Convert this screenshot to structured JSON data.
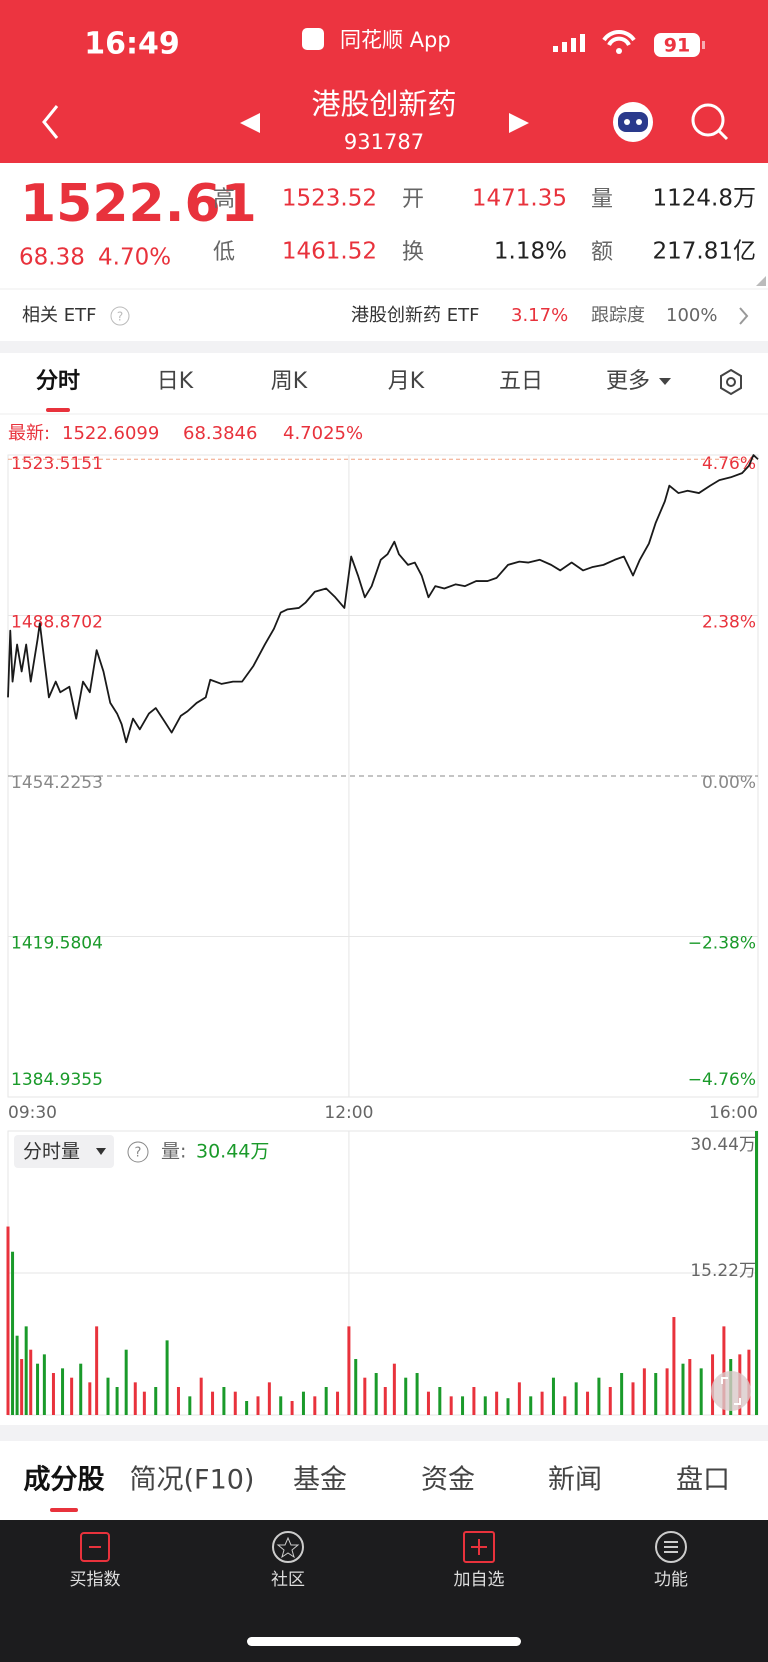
{
  "status_bar": {
    "time": "16:49",
    "app": "同花顺 App",
    "battery": "91"
  },
  "header": {
    "title": "港股创新药",
    "code": "931787"
  },
  "quote": {
    "price": "1522.61",
    "change": "68.38",
    "change_pct": "4.70%",
    "fields": [
      {
        "label": "高",
        "value": "1523.52"
      },
      {
        "label": "开",
        "value": "1471.35"
      },
      {
        "label": "量",
        "value": "1124.8万"
      },
      {
        "label": "低",
        "value": "1461.52"
      },
      {
        "label": "换",
        "value": "1.18%"
      },
      {
        "label": "额",
        "value": "217.81亿"
      }
    ]
  },
  "etf": {
    "label": "相关 ETF",
    "name": "港股创新药 ETF",
    "pct": "3.17%",
    "track_label": "跟踪度",
    "track": "100%"
  },
  "tabs": [
    "分时",
    "日K",
    "周K",
    "月K",
    "五日",
    "更多"
  ],
  "latest": {
    "label": "最新:",
    "price": "1522.6099",
    "change": "68.3846",
    "pct": "4.7025%"
  },
  "volume_panel": {
    "selector": "分时量",
    "label": "量:",
    "value": "30.44万"
  },
  "bottom_tabs": [
    "成分股",
    "简况(F10)",
    "基金",
    "资金",
    "新闻",
    "盘口"
  ],
  "nav": [
    "买指数",
    "社区",
    "加自选",
    "功能"
  ],
  "chart_data": [
    {
      "type": "line",
      "color": "#1a1a1a",
      "grid": true,
      "xlim": [
        0,
        330
      ],
      "xticks": [
        {
          "value": 0,
          "label": "09:30"
        },
        {
          "value": 150,
          "label": "12:00"
        },
        {
          "value": 330,
          "label": "16:00"
        }
      ],
      "ylim": [
        1384.9355,
        1523.5151
      ],
      "yticks": [
        1523.5151,
        1488.8702,
        1454.2253,
        1419.5804,
        1384.9355
      ],
      "y2lim": [
        -4.76,
        4.76
      ],
      "y2ticks": [
        {
          "value": 4.76,
          "label": "4.76%"
        },
        {
          "value": 2.38,
          "label": "2.38%"
        },
        {
          "value": 0,
          "label": "0.00%"
        },
        {
          "value": -2.38,
          "label": "−2.38%"
        },
        {
          "value": -4.76,
          "label": "−4.76%"
        }
      ],
      "x": [
        0,
        1,
        2,
        4,
        6,
        8,
        10,
        13,
        14,
        16,
        18,
        21,
        23,
        27,
        30,
        33,
        36,
        39,
        42,
        45,
        48,
        50,
        52,
        55,
        58,
        62,
        65,
        69,
        72,
        76,
        79,
        83,
        87,
        89,
        94,
        99,
        103,
        108,
        113,
        117,
        120,
        123,
        128,
        131,
        135,
        140,
        144,
        148,
        151,
        154,
        157,
        160,
        164,
        167,
        170,
        172,
        176,
        179,
        182,
        185,
        188,
        192,
        197,
        201,
        206,
        211,
        215,
        220,
        225,
        229,
        234,
        239,
        243,
        248,
        253,
        257,
        262,
        267,
        271,
        275,
        278,
        282,
        285,
        289,
        291,
        295,
        299,
        304,
        309,
        313,
        318,
        323,
        326,
        328,
        330
      ],
      "values": [
        1471.2,
        1485.6,
        1474.6,
        1482.6,
        1476.8,
        1482.6,
        1474.6,
        1483.7,
        1487.2,
        1479.1,
        1471.2,
        1474.6,
        1472.3,
        1473.5,
        1466.6,
        1474.6,
        1472.3,
        1481.4,
        1476.8,
        1470.0,
        1467.7,
        1465.4,
        1461.5,
        1466.6,
        1464.3,
        1467.7,
        1468.9,
        1465.9,
        1463.6,
        1467.2,
        1468.2,
        1470.0,
        1471.2,
        1475.0,
        1474.1,
        1474.6,
        1474.6,
        1478.0,
        1482.6,
        1486.0,
        1489.5,
        1490.2,
        1490.5,
        1491.7,
        1494.0,
        1494.7,
        1492.8,
        1490.5,
        1501.6,
        1497.5,
        1492.8,
        1495.2,
        1500.9,
        1502.1,
        1504.8,
        1502.1,
        1499.8,
        1500.3,
        1497.5,
        1492.8,
        1495.2,
        1494.7,
        1495.6,
        1495.2,
        1496.3,
        1496.3,
        1497.0,
        1499.8,
        1500.5,
        1500.3,
        1500.9,
        1499.8,
        1498.6,
        1500.3,
        1498.6,
        1499.3,
        1499.8,
        1500.9,
        1501.6,
        1497.5,
        1500.9,
        1504.4,
        1508.9,
        1513.5,
        1516.9,
        1515.3,
        1515.8,
        1515.3,
        1516.9,
        1518.1,
        1518.7,
        1519.6,
        1521.2,
        1523.5,
        1522.6
      ]
    },
    {
      "type": "bar",
      "grid": true,
      "xlim": [
        0,
        330
      ],
      "ylim": [
        0,
        30.44
      ],
      "yticks": [
        {
          "value": 30.44,
          "label": "30.44万"
        },
        {
          "value": 15.22,
          "label": "15.22万"
        }
      ],
      "x": [
        0,
        2,
        4,
        6,
        8,
        10,
        13,
        16,
        20,
        24,
        28,
        32,
        36,
        39,
        44,
        48,
        52,
        56,
        60,
        65,
        70,
        75,
        80,
        85,
        90,
        95,
        100,
        105,
        110,
        115,
        120,
        125,
        130,
        135,
        140,
        145,
        150,
        153,
        157,
        162,
        166,
        170,
        175,
        180,
        185,
        190,
        195,
        200,
        205,
        210,
        215,
        220,
        225,
        230,
        235,
        240,
        245,
        250,
        255,
        260,
        265,
        270,
        275,
        280,
        285,
        290,
        293,
        297,
        300,
        305,
        310,
        315,
        318,
        322,
        326,
        330
      ],
      "values": [
        20.2,
        17.5,
        8.5,
        6.0,
        9.5,
        7.0,
        5.5,
        6.5,
        4.5,
        5.0,
        4.0,
        5.5,
        3.5,
        9.5,
        4.0,
        3.0,
        7.0,
        3.5,
        2.5,
        3.0,
        8.0,
        3.0,
        2.0,
        4.0,
        2.5,
        3.0,
        2.5,
        1.5,
        2.0,
        3.5,
        2.0,
        1.5,
        2.5,
        2.0,
        3.0,
        2.5,
        9.5,
        6.0,
        4.0,
        4.5,
        3.0,
        5.5,
        4.0,
        4.5,
        2.5,
        3.0,
        2.0,
        2.0,
        3.0,
        2.0,
        2.5,
        1.8,
        3.5,
        2.0,
        2.5,
        4.0,
        2.0,
        3.5,
        2.5,
        4.0,
        3.0,
        4.5,
        3.5,
        5.0,
        4.5,
        5.0,
        10.5,
        5.5,
        6.0,
        5.0,
        6.5,
        9.5,
        6.0,
        6.5,
        7.0,
        30.44
      ],
      "colors": [
        "#e8323c",
        "#1a9a2a",
        "#1a9a2a",
        "#e8323c",
        "#1a9a2a",
        "#e8323c",
        "#1a9a2a",
        "#1a9a2a",
        "#e8323c",
        "#1a9a2a",
        "#e8323c",
        "#1a9a2a",
        "#e8323c",
        "#e8323c",
        "#1a9a2a",
        "#1a9a2a",
        "#1a9a2a",
        "#e8323c",
        "#e8323c",
        "#1a9a2a",
        "#1a9a2a",
        "#e8323c",
        "#1a9a2a",
        "#e8323c",
        "#e8323c",
        "#1a9a2a",
        "#e8323c",
        "#1a9a2a",
        "#e8323c",
        "#e8323c",
        "#1a9a2a",
        "#e8323c",
        "#1a9a2a",
        "#e8323c",
        "#1a9a2a",
        "#e8323c",
        "#e8323c",
        "#1a9a2a",
        "#e8323c",
        "#1a9a2a",
        "#e8323c",
        "#e8323c",
        "#1a9a2a",
        "#1a9a2a",
        "#e8323c",
        "#1a9a2a",
        "#e8323c",
        "#1a9a2a",
        "#e8323c",
        "#1a9a2a",
        "#e8323c",
        "#1a9a2a",
        "#e8323c",
        "#1a9a2a",
        "#e8323c",
        "#1a9a2a",
        "#e8323c",
        "#1a9a2a",
        "#e8323c",
        "#1a9a2a",
        "#e8323c",
        "#1a9a2a",
        "#e8323c",
        "#e8323c",
        "#1a9a2a",
        "#e8323c",
        "#e8323c",
        "#1a9a2a",
        "#e8323c",
        "#1a9a2a",
        "#e8323c",
        "#e8323c",
        "#1a9a2a",
        "#e8323c",
        "#e8323c",
        "#1a9a2a"
      ]
    }
  ]
}
